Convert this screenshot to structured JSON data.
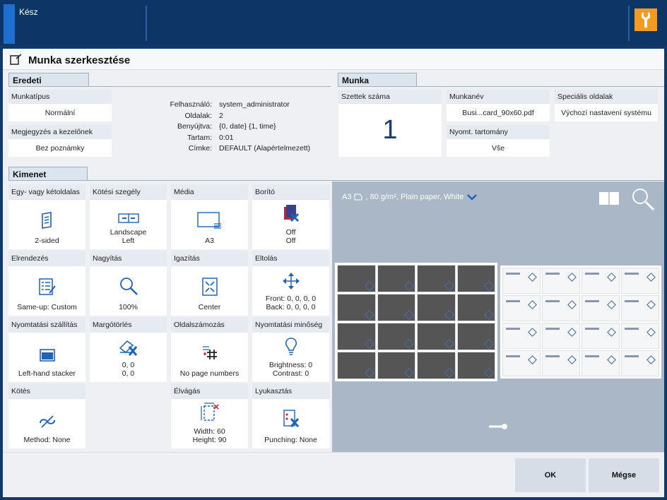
{
  "topbar": {
    "status": "Kész"
  },
  "dialog": {
    "title": "Munka szerkesztése"
  },
  "eredeti": {
    "tab": "Eredeti",
    "munkatipus_label": "Munkatípus",
    "munkatipus_value": "Normální",
    "megjegyzes_label": "Megjegyzés a kezelőnek",
    "megjegyzes_value": "Bez poznámky",
    "info": [
      {
        "k": "Felhasználó:",
        "v": "system_administrator"
      },
      {
        "k": "Oldalak:",
        "v": "2"
      },
      {
        "k": "Benyújtva:",
        "v": "{0, date} {1, time}"
      },
      {
        "k": "Tartam:",
        "v": "0:01"
      },
      {
        "k": "Címke:",
        "v": "DEFAULT (Alapértelmezett)"
      }
    ]
  },
  "munka": {
    "tab": "Munka",
    "szettek_label": "Szettek száma",
    "szettek_value": "1",
    "munkanev_label": "Munkanév",
    "munkanev_value": "Busi...card_90x60.pdf",
    "nyomt_label": "Nyomt. tartomány",
    "nyomt_value": "Vše",
    "specialis_label": "Speciális oldalak",
    "specialis_value": "Výchozí nastavení systému"
  },
  "kimenet": {
    "tab": "Kimenet",
    "cells": {
      "sides": {
        "h": "Egy- vagy kétoldalas",
        "l1": "2-sided",
        "l2": ""
      },
      "binding_edge": {
        "h": "Kötési szegély",
        "l1": "Landscape",
        "l2": "Left"
      },
      "media": {
        "h": "Média",
        "l1": "A3",
        "l2": ""
      },
      "cover": {
        "h": "Borító",
        "l1": "Off",
        "l2": "Off"
      },
      "layout": {
        "h": "Elrendezés",
        "l1": "Same-up: Custom",
        "l2": ""
      },
      "zoom": {
        "h": "Nagyítás",
        "l1": "100%",
        "l2": ""
      },
      "align": {
        "h": "Igazítás",
        "l1": "Center",
        "l2": ""
      },
      "shift": {
        "h": "Eltolás",
        "l1": "Front: 0, 0, 0, 0",
        "l2": "Back: 0, 0, 0, 0"
      },
      "delivery": {
        "h": "Nyomtatási szállítás",
        "l1": "Left-hand stacker",
        "l2": ""
      },
      "margin": {
        "h": "Margótörlés",
        "l1": "0, 0",
        "l2": "0, 0"
      },
      "numbering": {
        "h": "Oldalszámozás",
        "l1": "No page numbers",
        "l2": ""
      },
      "quality": {
        "h": "Nyomtatási minőség",
        "l1": "Brightness: 0",
        "l2": "Contrast: 0"
      },
      "binding": {
        "h": "Kötés",
        "l1": "Method: None",
        "l2": ""
      },
      "trim": {
        "h": "Élvágás",
        "l1": "Width: 60",
        "l2": "Height: 90"
      },
      "punch": {
        "h": "Lyukasztás",
        "l1": "Punching: None",
        "l2": ""
      }
    }
  },
  "preview": {
    "media": "A3",
    "media_rest": ", 80 g/m², Plain paper, White"
  },
  "footer": {
    "ok": "OK",
    "cancel": "Mégse"
  },
  "colors": {
    "topbar": "#0d3667",
    "accent": "#1f6fd1",
    "wrench": "#f39a21",
    "icon_blue": "#1e63b8",
    "icon_red": "#e0242e"
  }
}
